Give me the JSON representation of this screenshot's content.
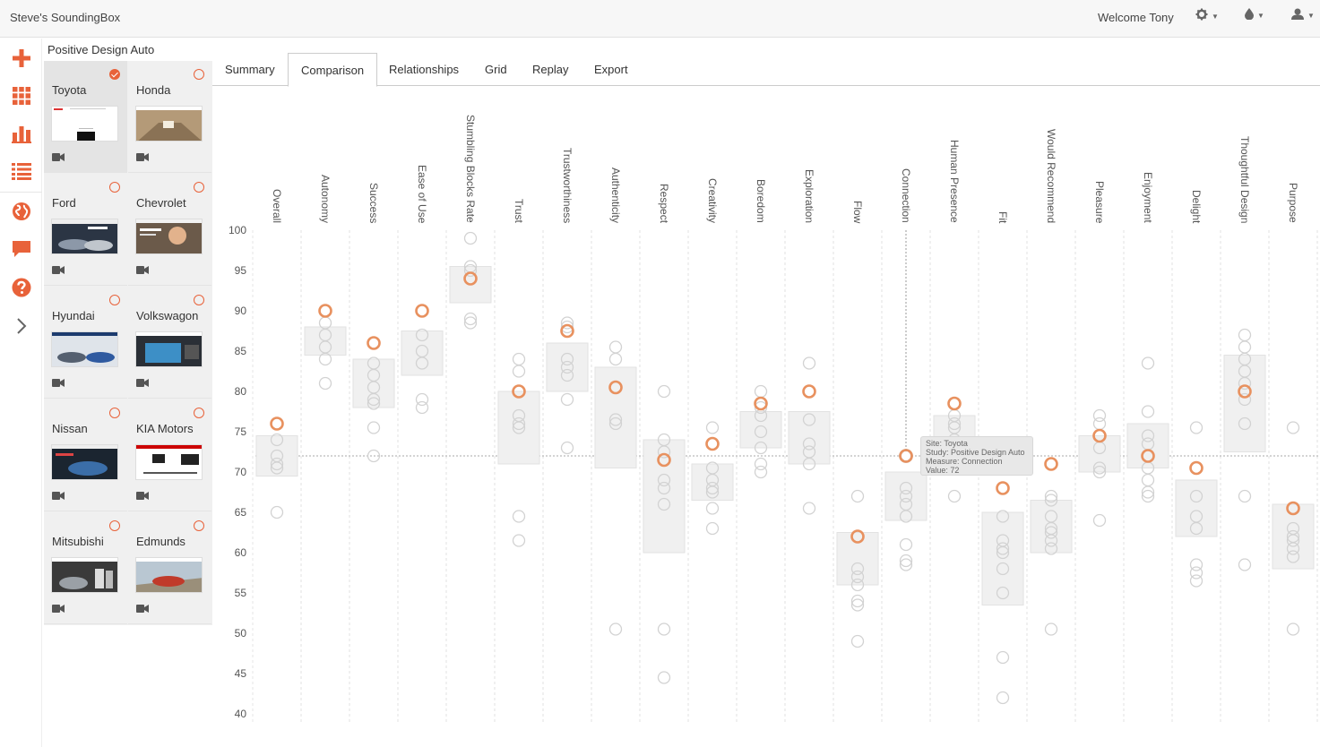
{
  "app": {
    "title": "Steve's SoundingBox"
  },
  "header": {
    "welcome": "Welcome Tony",
    "icons": [
      "gear-icon",
      "drop-icon",
      "user-icon"
    ]
  },
  "sidebar": {
    "icons": [
      "add-icon",
      "grid-icon",
      "bar-chart-icon",
      "list-icon",
      "globe-icon",
      "chat-icon",
      "help-icon",
      "chevron-right-icon"
    ]
  },
  "study": {
    "title": "Positive Design Auto"
  },
  "sites": [
    {
      "name": "Toyota",
      "selected": true
    },
    {
      "name": "Honda",
      "selected": false
    },
    {
      "name": "Ford",
      "selected": false
    },
    {
      "name": "Chevrolet",
      "selected": false
    },
    {
      "name": "Hyundai",
      "selected": false
    },
    {
      "name": "Volkswagon",
      "selected": false
    },
    {
      "name": "Nissan",
      "selected": false
    },
    {
      "name": "KIA Motors",
      "selected": false
    },
    {
      "name": "Mitsubishi",
      "selected": false
    },
    {
      "name": "Edmunds",
      "selected": false
    }
  ],
  "tabs": [
    {
      "label": "Summary",
      "active": false
    },
    {
      "label": "Comparison",
      "active": true
    },
    {
      "label": "Relationships",
      "active": false
    },
    {
      "label": "Grid",
      "active": false
    },
    {
      "label": "Replay",
      "active": false
    },
    {
      "label": "Export",
      "active": false
    }
  ],
  "colors": {
    "accent": "#e8623a",
    "highlight_ring": "#e8915f",
    "other_ring": "#d2d2d2",
    "box": "#f0f0f0"
  },
  "tooltip": {
    "site": "Site: Toyota",
    "study": "Study: Positive Design Auto",
    "measure": "Measure: Connection",
    "value": "Value: 72"
  },
  "chart_data": {
    "type": "scatter",
    "y_ticks": [
      100,
      95,
      90,
      85,
      80,
      75,
      70,
      65,
      60,
      55,
      50,
      45,
      40
    ],
    "ylim": [
      40,
      100
    ],
    "grid": "vertical dashed",
    "reference_line": 72,
    "measures": [
      {
        "name": "Overall",
        "highlight": 76,
        "box": [
          69.5,
          74.5
        ],
        "points": [
          74,
          72,
          71,
          70.5,
          65
        ]
      },
      {
        "name": "Autonomy",
        "highlight": 90,
        "box": [
          84.5,
          88
        ],
        "points": [
          88.5,
          87,
          85.5,
          84,
          81
        ]
      },
      {
        "name": "Success",
        "highlight": 86,
        "box": [
          78,
          84
        ],
        "points": [
          83.5,
          82,
          80.5,
          79,
          78.5,
          75.5,
          72
        ]
      },
      {
        "name": "Ease of Use",
        "highlight": 90,
        "box": [
          82,
          87.5
        ],
        "points": [
          87,
          85,
          83.5,
          79,
          78
        ]
      },
      {
        "name": "Stumbling Blocks Rate",
        "highlight": 94,
        "box": [
          91,
          95.5
        ],
        "points": [
          99,
          95.5,
          95,
          89,
          88.5
        ]
      },
      {
        "name": "Trust",
        "highlight": 80,
        "box": [
          71,
          80
        ],
        "points": [
          84,
          82.5,
          77,
          76,
          75.5,
          64.5,
          61.5
        ]
      },
      {
        "name": "Trustworthiness",
        "highlight": 87.5,
        "box": [
          80,
          86
        ],
        "points": [
          88.5,
          88,
          84,
          83,
          82,
          79,
          73
        ]
      },
      {
        "name": "Authenticity",
        "highlight": 80.5,
        "box": [
          70.5,
          83
        ],
        "points": [
          85.5,
          84,
          80.5,
          76.5,
          76,
          50.5
        ]
      },
      {
        "name": "Respect",
        "highlight": 71.5,
        "box": [
          60,
          74
        ],
        "points": [
          80,
          74,
          72.5,
          69,
          68,
          66,
          50.5,
          44.5
        ]
      },
      {
        "name": "Creativity",
        "highlight": 73.5,
        "box": [
          66.5,
          71
        ],
        "points": [
          75.5,
          70.5,
          69,
          68,
          67.5,
          65.5,
          63
        ]
      },
      {
        "name": "Boredom",
        "highlight": 78.5,
        "box": [
          73,
          77.5
        ],
        "points": [
          80,
          78,
          77,
          75,
          73,
          71,
          70
        ]
      },
      {
        "name": "Exploration",
        "highlight": 80,
        "box": [
          71,
          77.5
        ],
        "points": [
          83.5,
          76.5,
          73.5,
          72.5,
          71,
          65.5
        ]
      },
      {
        "name": "Flow",
        "highlight": 62,
        "box": [
          56,
          62.5
        ],
        "points": [
          67,
          58,
          57,
          56,
          54,
          53.5,
          49
        ]
      },
      {
        "name": "Connection",
        "highlight": 72,
        "box": [
          64,
          70
        ],
        "points": [
          68,
          67,
          66,
          64.5,
          61,
          59,
          58.5
        ]
      },
      {
        "name": "Human Presence",
        "highlight": 78.5,
        "box": [
          72,
          77
        ],
        "points": [
          77,
          76,
          75.5,
          74,
          71,
          67
        ]
      },
      {
        "name": "Fit",
        "highlight": 68,
        "box": [
          53.5,
          65
        ],
        "points": [
          64.5,
          61.5,
          60.5,
          60,
          58,
          55,
          47,
          42
        ]
      },
      {
        "name": "Would Recommend",
        "highlight": 71,
        "box": [
          60,
          66.5
        ],
        "points": [
          67,
          66.5,
          64.5,
          63,
          62.5,
          61.5,
          60.5,
          50.5
        ]
      },
      {
        "name": "Pleasure",
        "highlight": 74.5,
        "box": [
          70,
          74.5
        ],
        "points": [
          77,
          76,
          73,
          70.5,
          70,
          64
        ]
      },
      {
        "name": "Enjoyment",
        "highlight": 72,
        "box": [
          70.5,
          76
        ],
        "points": [
          83.5,
          77.5,
          74.5,
          73.5,
          70.5,
          69,
          67.5,
          67
        ]
      },
      {
        "name": "Delight",
        "highlight": 70.5,
        "box": [
          62,
          69
        ],
        "points": [
          75.5,
          67,
          64.5,
          63,
          58.5,
          57.5,
          56.5
        ]
      },
      {
        "name": "Thoughtful Design",
        "highlight": 80,
        "box": [
          72.5,
          84.5
        ],
        "points": [
          87,
          85.5,
          84,
          82.5,
          81,
          79,
          76,
          67,
          58.5
        ]
      },
      {
        "name": "Purpose",
        "highlight": 65.5,
        "box": [
          58,
          66
        ],
        "points": [
          75.5,
          63,
          62,
          61.5,
          60.5,
          59.5,
          50.5
        ]
      }
    ]
  }
}
